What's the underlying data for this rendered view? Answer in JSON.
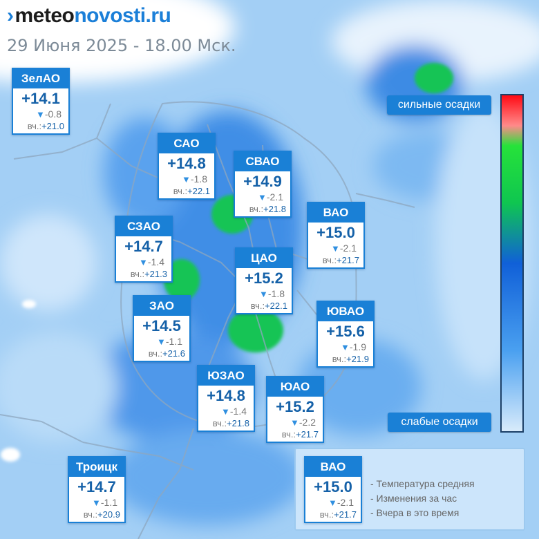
{
  "header": {
    "logo_part1": "meteo",
    "logo_part2": "novosti.ru",
    "datetime": "29 Июня 2025 - 18.00 Мск."
  },
  "districts": [
    {
      "name": "ЗелАО",
      "temp": "+14.1",
      "delta": "-0.8",
      "yesterday_label": "вч.:",
      "yesterday": "+21.0"
    },
    {
      "name": "САО",
      "temp": "+14.8",
      "delta": "-1.8",
      "yesterday_label": "вч.:",
      "yesterday": "+22.1"
    },
    {
      "name": "СВАО",
      "temp": "+14.9",
      "delta": "-2.1",
      "yesterday_label": "вч.:",
      "yesterday": "+21.8"
    },
    {
      "name": "ВАО",
      "temp": "+15.0",
      "delta": "-2.1",
      "yesterday_label": "вч.:",
      "yesterday": "+21.7"
    },
    {
      "name": "СЗАО",
      "temp": "+14.7",
      "delta": "-1.4",
      "yesterday_label": "вч.:",
      "yesterday": "+21.3"
    },
    {
      "name": "ЦАО",
      "temp": "+15.2",
      "delta": "-1.8",
      "yesterday_label": "вч.:",
      "yesterday": "+22.1"
    },
    {
      "name": "ЗАО",
      "temp": "+14.5",
      "delta": "-1.1",
      "yesterday_label": "вч.:",
      "yesterday": "+21.6"
    },
    {
      "name": "ЮВАО",
      "temp": "+15.6",
      "delta": "-1.9",
      "yesterday_label": "вч.:",
      "yesterday": "+21.9"
    },
    {
      "name": "ЮЗАО",
      "temp": "+14.8",
      "delta": "-1.4",
      "yesterday_label": "вч.:",
      "yesterday": "+21.8"
    },
    {
      "name": "ЮАО",
      "temp": "+15.2",
      "delta": "-2.2",
      "yesterday_label": "вч.:",
      "yesterday": "+21.7"
    },
    {
      "name": "Троицк",
      "temp": "+14.7",
      "delta": "-1.1",
      "yesterday_label": "вч.:",
      "yesterday": "+20.9"
    }
  ],
  "scale": {
    "top_label": "сильные осадки",
    "bottom_label": "слабые осадки"
  },
  "legend": {
    "sample": {
      "name": "ВАО",
      "temp": "+15.0",
      "delta": "-2.1",
      "yesterday_label": "вч.:",
      "yesterday": "+21.7"
    },
    "items": [
      "- Температура средняя",
      "- Изменения за час",
      "- Вчера в это время"
    ]
  }
}
